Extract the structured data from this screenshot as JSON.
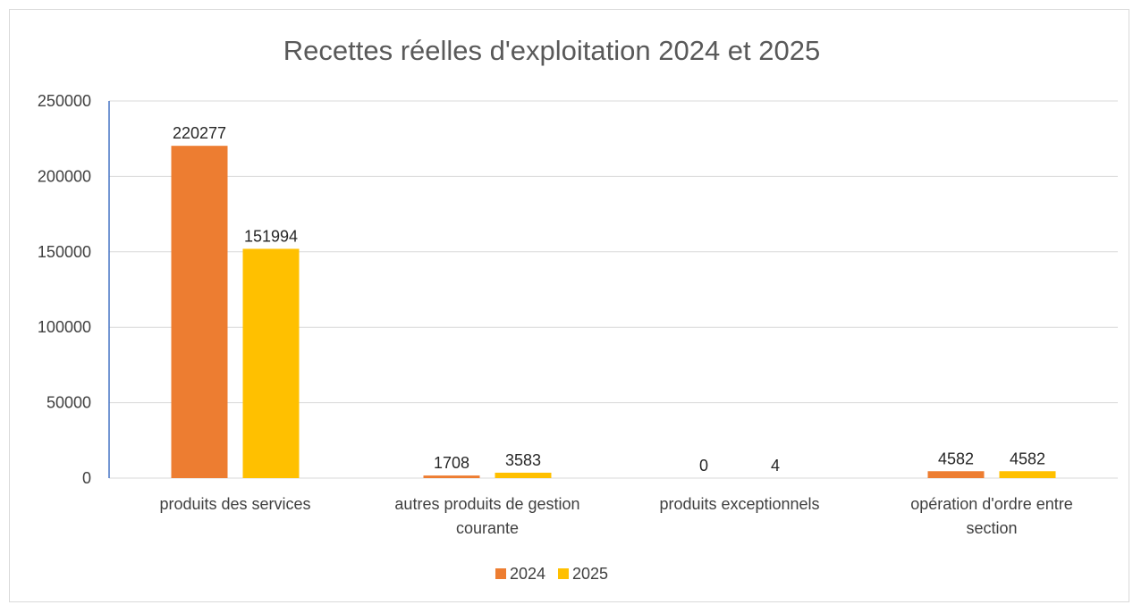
{
  "chart_data": {
    "type": "bar",
    "title": "Recettes réelles d'exploitation 2024 et 2025",
    "categories": [
      [
        "produits des services"
      ],
      [
        "autres produits de gestion",
        "courante"
      ],
      [
        "produits exceptionnels"
      ],
      [
        "opération d'ordre entre",
        "section"
      ]
    ],
    "series": [
      {
        "name": "2024",
        "color": "#ED7D31",
        "values": [
          220277,
          1708,
          0,
          4582
        ]
      },
      {
        "name": "2025",
        "color": "#FFC000",
        "values": [
          151994,
          3583,
          4,
          4582
        ]
      }
    ],
    "ylim": [
      0,
      250000
    ],
    "yticks": [
      0,
      50000,
      100000,
      150000,
      200000,
      250000
    ],
    "grid": true,
    "legend": "bottom",
    "data_labels": true
  }
}
